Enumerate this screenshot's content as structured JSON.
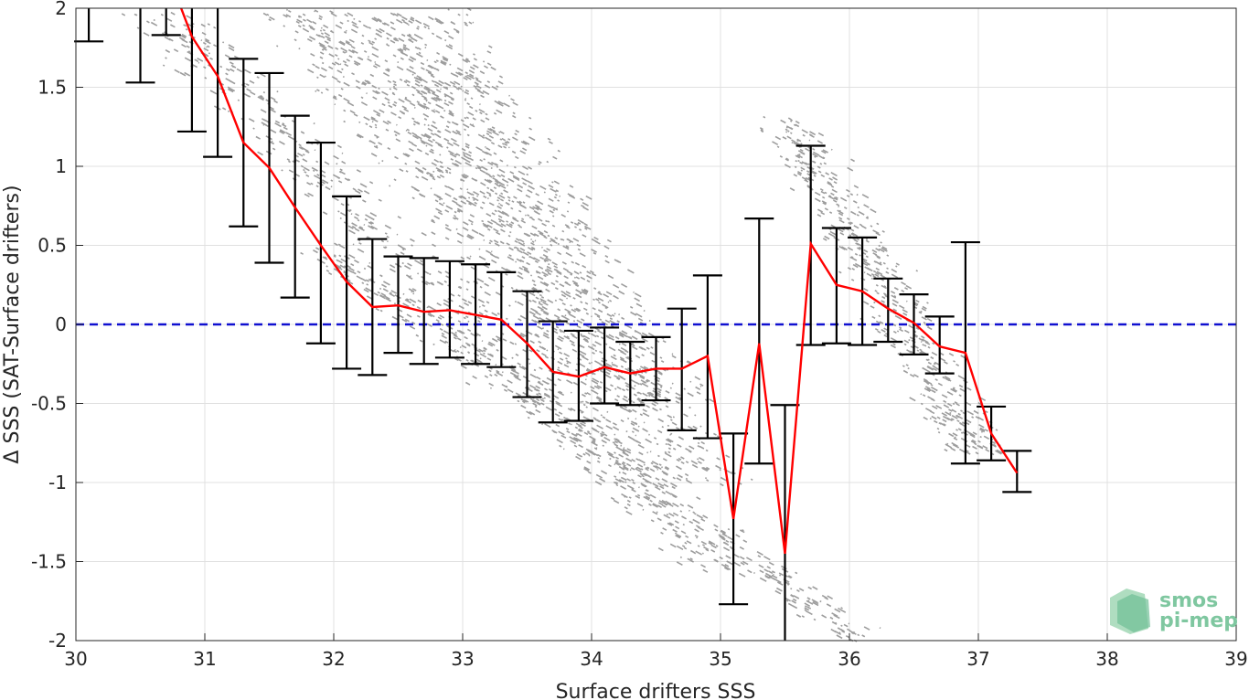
{
  "chart_data": {
    "type": "scatter",
    "xlabel": "Surface drifters SSS",
    "ylabel": "Δ SSS (SAT-Surface drifters)",
    "xlim": [
      30,
      39
    ],
    "ylim": [
      -2,
      2
    ],
    "xticks": [
      "30",
      "31",
      "32",
      "33",
      "34",
      "35",
      "36",
      "37",
      "38",
      "39"
    ],
    "yticks": [
      "-2",
      "-1.5",
      "-1",
      "-0.5",
      "0",
      "0.5",
      "1",
      "1.5",
      "2"
    ],
    "grid": true,
    "reference_line": {
      "y": 0,
      "style": "dashed",
      "color": "#1010d0"
    },
    "scatter_color": "#8c8c8c",
    "mean_color": "#ff0000",
    "errorbar_color": "#000000",
    "series": [
      {
        "type": "errorbar",
        "x": [
          30.1,
          30.5,
          30.7,
          30.9,
          31.1,
          31.3,
          31.5,
          31.7,
          31.9,
          32.1,
          32.3,
          32.5,
          32.7,
          32.9,
          33.1,
          33.3,
          33.5,
          33.7,
          33.9,
          34.1,
          34.3,
          34.5,
          34.7,
          34.9,
          35.1,
          35.3,
          35.5,
          35.7,
          35.9,
          36.1,
          36.3,
          36.5,
          36.7,
          36.9,
          37.1,
          37.3
        ],
        "mean": [
          2.4,
          2.35,
          2.25,
          1.82,
          1.57,
          1.15,
          0.99,
          0.74,
          0.5,
          0.27,
          0.11,
          0.12,
          0.08,
          0.09,
          0.06,
          0.03,
          -0.12,
          -0.3,
          -0.33,
          -0.27,
          -0.31,
          -0.28,
          -0.28,
          -0.2,
          -1.23,
          -0.12,
          -1.45,
          0.51,
          0.25,
          0.21,
          0.1,
          0.01,
          -0.14,
          -0.18,
          -0.69,
          -0.94
        ],
        "low": [
          1.79,
          1.53,
          1.83,
          1.22,
          1.06,
          0.62,
          0.39,
          0.17,
          -0.12,
          -0.28,
          -0.32,
          -0.18,
          -0.25,
          -0.21,
          -0.25,
          -0.27,
          -0.46,
          -0.62,
          -0.61,
          -0.5,
          -0.51,
          -0.48,
          -0.67,
          -0.72,
          -1.77,
          -0.88,
          -2.0,
          -0.13,
          -0.12,
          -0.13,
          -0.11,
          -0.19,
          -0.31,
          -0.88,
          -0.86,
          -1.06
        ],
        "high": [
          2.1,
          2.1,
          2.1,
          2.1,
          2.1,
          1.68,
          1.59,
          1.32,
          1.15,
          0.81,
          0.54,
          0.43,
          0.42,
          0.4,
          0.38,
          0.33,
          0.21,
          0.02,
          -0.04,
          -0.02,
          -0.11,
          -0.08,
          0.1,
          0.31,
          -0.69,
          0.67,
          -0.51,
          1.13,
          0.61,
          0.55,
          0.29,
          0.19,
          0.05,
          0.52,
          -0.52,
          -0.8
        ]
      }
    ],
    "scatter_bands": [
      {
        "x0": 30.6,
        "y0": 2.0,
        "x1": 35.0,
        "y1": -1.55,
        "width": 0.35,
        "density": 0.7
      },
      {
        "x0": 31.8,
        "y0": 2.0,
        "x1": 34.8,
        "y1": -1.0,
        "width": 0.55,
        "density": 1.0
      },
      {
        "x0": 32.5,
        "y0": 2.0,
        "x1": 34.5,
        "y1": -0.5,
        "width": 0.6,
        "density": 0.9
      },
      {
        "x0": 31.9,
        "y0": 0.5,
        "x1": 36.1,
        "y1": -2.0,
        "width": 0.25,
        "density": 0.5
      },
      {
        "x0": 35.5,
        "y0": 1.3,
        "x1": 37.0,
        "y1": -0.8,
        "width": 0.3,
        "density": 0.6
      }
    ]
  },
  "logo": {
    "line1": "smos",
    "line2": "pi-mep"
  }
}
